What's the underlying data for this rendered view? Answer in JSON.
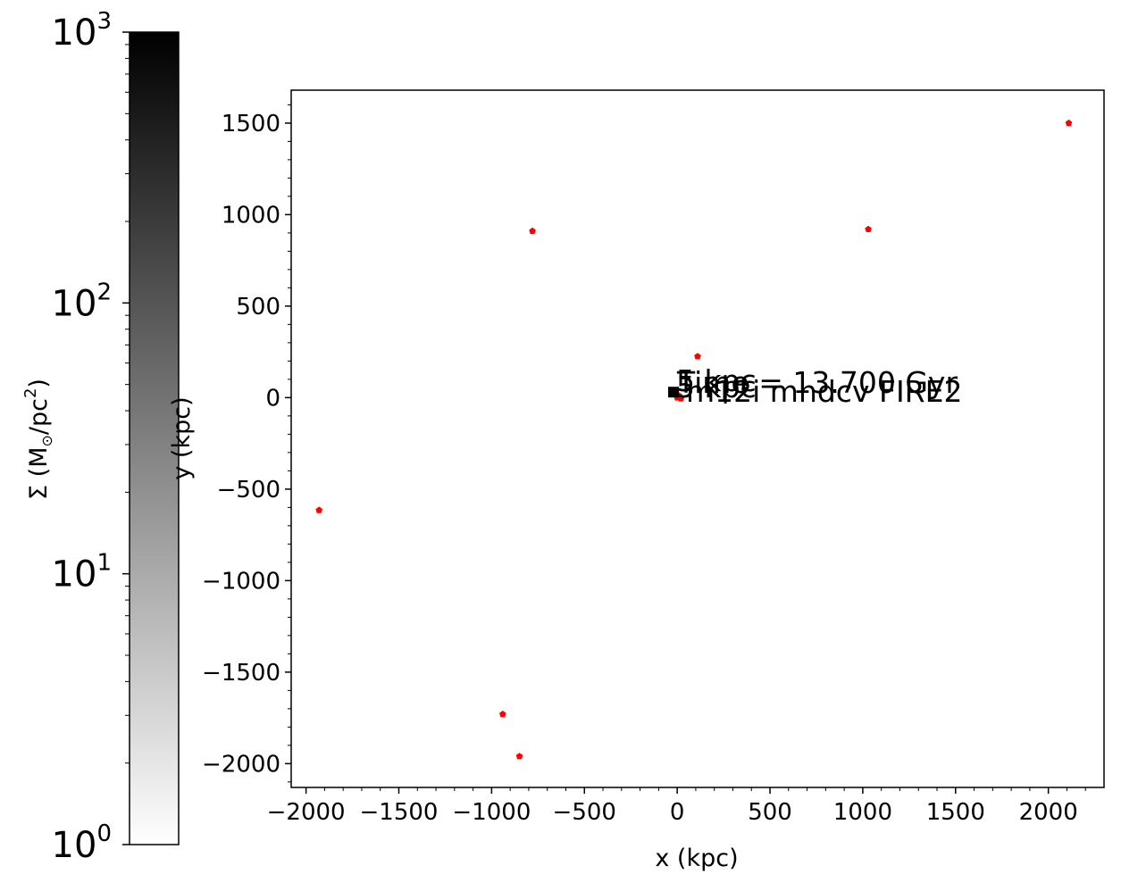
{
  "chart_data": {
    "type": "scatter",
    "xlabel": "x (kpc)",
    "ylabel": "y (kpc)",
    "xlim": [
      -2080,
      2300
    ],
    "ylim": [
      -2130,
      1680
    ],
    "x_ticks": [
      -2000,
      -1500,
      -1000,
      -500,
      0,
      500,
      1000,
      1500,
      2000
    ],
    "y_ticks": [
      -2000,
      -1500,
      -1000,
      -500,
      0,
      500,
      1000,
      1500
    ],
    "x_tick_labels": [
      "−2000",
      "−1500",
      "−1000",
      "−500",
      "0",
      "500",
      "1000",
      "1500",
      "2000"
    ],
    "y_tick_labels": [
      "−2000",
      "−1500",
      "−1000",
      "−500",
      "0",
      "500",
      "1000",
      "1500"
    ],
    "grid": false,
    "marker_color": "#ff0000",
    "points": [
      {
        "x": -780,
        "y": 910
      },
      {
        "x": 110,
        "y": 225
      },
      {
        "x": 1030,
        "y": 920
      },
      {
        "x": 2110,
        "y": 1500
      },
      {
        "x": -1930,
        "y": -615
      },
      {
        "x": -940,
        "y": -1730
      },
      {
        "x": -850,
        "y": -1960
      },
      {
        "x": 0,
        "y": 0
      },
      {
        "x": 20,
        "y": -5
      },
      {
        "x": 10,
        "y": 10
      }
    ],
    "center_marker": {
      "x": -20,
      "y": 30,
      "color": "#000000"
    },
    "annotations": {
      "time": "Time = 13.700 Gyr",
      "sim": "m12i mhdcv FIRE2",
      "overlap_a": "5 kpc",
      "overlap_b": "5 kpc"
    },
    "colorbar": {
      "label_main": "Σ (M",
      "label_sun": "⊙",
      "label_mid": "/pc",
      "label_sup": "2",
      "label_end": ")",
      "scale": "log",
      "range": [
        1,
        1000
      ],
      "ticks": [
        {
          "value": 1000,
          "base": "10",
          "exp": "3"
        },
        {
          "value": 100,
          "base": "10",
          "exp": "2"
        },
        {
          "value": 10,
          "base": "10",
          "exp": "1"
        },
        {
          "value": 1,
          "base": "10",
          "exp": "0"
        }
      ],
      "colormap": [
        "#ffffff",
        "#000000"
      ]
    }
  }
}
